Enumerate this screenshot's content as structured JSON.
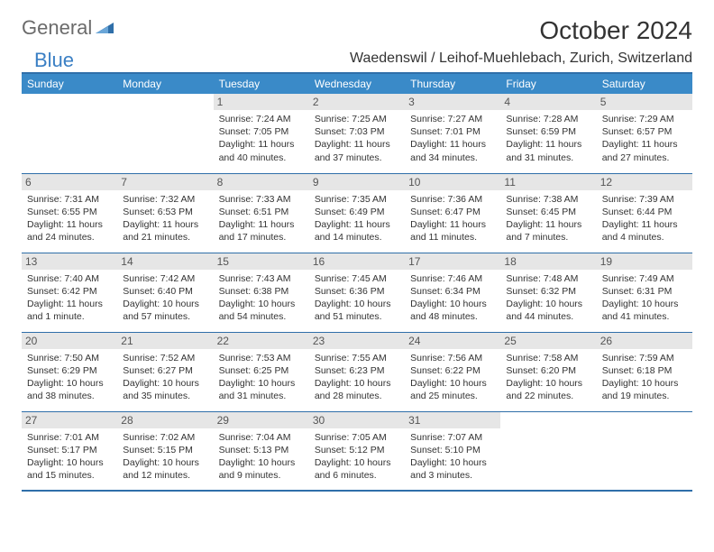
{
  "logo": {
    "general": "General",
    "blue": "Blue"
  },
  "title": "October 2024",
  "location": "Waedenswil / Leihof-Muehlebach, Zurich, Switzerland",
  "colors": {
    "header_bg": "#3a8ac8",
    "header_text": "#ffffff",
    "border": "#2f6fa9",
    "daynum_bg": "#e6e6e6",
    "text": "#333333",
    "logo_general": "#6b6b6b",
    "logo_blue": "#3a7fc4"
  },
  "day_headers": [
    "Sunday",
    "Monday",
    "Tuesday",
    "Wednesday",
    "Thursday",
    "Friday",
    "Saturday"
  ],
  "weeks": [
    [
      {
        "empty": true
      },
      {
        "empty": true
      },
      {
        "num": "1",
        "sunrise": "Sunrise: 7:24 AM",
        "sunset": "Sunset: 7:05 PM",
        "daylight": "Daylight: 11 hours and 40 minutes."
      },
      {
        "num": "2",
        "sunrise": "Sunrise: 7:25 AM",
        "sunset": "Sunset: 7:03 PM",
        "daylight": "Daylight: 11 hours and 37 minutes."
      },
      {
        "num": "3",
        "sunrise": "Sunrise: 7:27 AM",
        "sunset": "Sunset: 7:01 PM",
        "daylight": "Daylight: 11 hours and 34 minutes."
      },
      {
        "num": "4",
        "sunrise": "Sunrise: 7:28 AM",
        "sunset": "Sunset: 6:59 PM",
        "daylight": "Daylight: 11 hours and 31 minutes."
      },
      {
        "num": "5",
        "sunrise": "Sunrise: 7:29 AM",
        "sunset": "Sunset: 6:57 PM",
        "daylight": "Daylight: 11 hours and 27 minutes."
      }
    ],
    [
      {
        "num": "6",
        "sunrise": "Sunrise: 7:31 AM",
        "sunset": "Sunset: 6:55 PM",
        "daylight": "Daylight: 11 hours and 24 minutes."
      },
      {
        "num": "7",
        "sunrise": "Sunrise: 7:32 AM",
        "sunset": "Sunset: 6:53 PM",
        "daylight": "Daylight: 11 hours and 21 minutes."
      },
      {
        "num": "8",
        "sunrise": "Sunrise: 7:33 AM",
        "sunset": "Sunset: 6:51 PM",
        "daylight": "Daylight: 11 hours and 17 minutes."
      },
      {
        "num": "9",
        "sunrise": "Sunrise: 7:35 AM",
        "sunset": "Sunset: 6:49 PM",
        "daylight": "Daylight: 11 hours and 14 minutes."
      },
      {
        "num": "10",
        "sunrise": "Sunrise: 7:36 AM",
        "sunset": "Sunset: 6:47 PM",
        "daylight": "Daylight: 11 hours and 11 minutes."
      },
      {
        "num": "11",
        "sunrise": "Sunrise: 7:38 AM",
        "sunset": "Sunset: 6:45 PM",
        "daylight": "Daylight: 11 hours and 7 minutes."
      },
      {
        "num": "12",
        "sunrise": "Sunrise: 7:39 AM",
        "sunset": "Sunset: 6:44 PM",
        "daylight": "Daylight: 11 hours and 4 minutes."
      }
    ],
    [
      {
        "num": "13",
        "sunrise": "Sunrise: 7:40 AM",
        "sunset": "Sunset: 6:42 PM",
        "daylight": "Daylight: 11 hours and 1 minute."
      },
      {
        "num": "14",
        "sunrise": "Sunrise: 7:42 AM",
        "sunset": "Sunset: 6:40 PM",
        "daylight": "Daylight: 10 hours and 57 minutes."
      },
      {
        "num": "15",
        "sunrise": "Sunrise: 7:43 AM",
        "sunset": "Sunset: 6:38 PM",
        "daylight": "Daylight: 10 hours and 54 minutes."
      },
      {
        "num": "16",
        "sunrise": "Sunrise: 7:45 AM",
        "sunset": "Sunset: 6:36 PM",
        "daylight": "Daylight: 10 hours and 51 minutes."
      },
      {
        "num": "17",
        "sunrise": "Sunrise: 7:46 AM",
        "sunset": "Sunset: 6:34 PM",
        "daylight": "Daylight: 10 hours and 48 minutes."
      },
      {
        "num": "18",
        "sunrise": "Sunrise: 7:48 AM",
        "sunset": "Sunset: 6:32 PM",
        "daylight": "Daylight: 10 hours and 44 minutes."
      },
      {
        "num": "19",
        "sunrise": "Sunrise: 7:49 AM",
        "sunset": "Sunset: 6:31 PM",
        "daylight": "Daylight: 10 hours and 41 minutes."
      }
    ],
    [
      {
        "num": "20",
        "sunrise": "Sunrise: 7:50 AM",
        "sunset": "Sunset: 6:29 PM",
        "daylight": "Daylight: 10 hours and 38 minutes."
      },
      {
        "num": "21",
        "sunrise": "Sunrise: 7:52 AM",
        "sunset": "Sunset: 6:27 PM",
        "daylight": "Daylight: 10 hours and 35 minutes."
      },
      {
        "num": "22",
        "sunrise": "Sunrise: 7:53 AM",
        "sunset": "Sunset: 6:25 PM",
        "daylight": "Daylight: 10 hours and 31 minutes."
      },
      {
        "num": "23",
        "sunrise": "Sunrise: 7:55 AM",
        "sunset": "Sunset: 6:23 PM",
        "daylight": "Daylight: 10 hours and 28 minutes."
      },
      {
        "num": "24",
        "sunrise": "Sunrise: 7:56 AM",
        "sunset": "Sunset: 6:22 PM",
        "daylight": "Daylight: 10 hours and 25 minutes."
      },
      {
        "num": "25",
        "sunrise": "Sunrise: 7:58 AM",
        "sunset": "Sunset: 6:20 PM",
        "daylight": "Daylight: 10 hours and 22 minutes."
      },
      {
        "num": "26",
        "sunrise": "Sunrise: 7:59 AM",
        "sunset": "Sunset: 6:18 PM",
        "daylight": "Daylight: 10 hours and 19 minutes."
      }
    ],
    [
      {
        "num": "27",
        "sunrise": "Sunrise: 7:01 AM",
        "sunset": "Sunset: 5:17 PM",
        "daylight": "Daylight: 10 hours and 15 minutes."
      },
      {
        "num": "28",
        "sunrise": "Sunrise: 7:02 AM",
        "sunset": "Sunset: 5:15 PM",
        "daylight": "Daylight: 10 hours and 12 minutes."
      },
      {
        "num": "29",
        "sunrise": "Sunrise: 7:04 AM",
        "sunset": "Sunset: 5:13 PM",
        "daylight": "Daylight: 10 hours and 9 minutes."
      },
      {
        "num": "30",
        "sunrise": "Sunrise: 7:05 AM",
        "sunset": "Sunset: 5:12 PM",
        "daylight": "Daylight: 10 hours and 6 minutes."
      },
      {
        "num": "31",
        "sunrise": "Sunrise: 7:07 AM",
        "sunset": "Sunset: 5:10 PM",
        "daylight": "Daylight: 10 hours and 3 minutes."
      },
      {
        "empty": true
      },
      {
        "empty": true
      }
    ]
  ]
}
